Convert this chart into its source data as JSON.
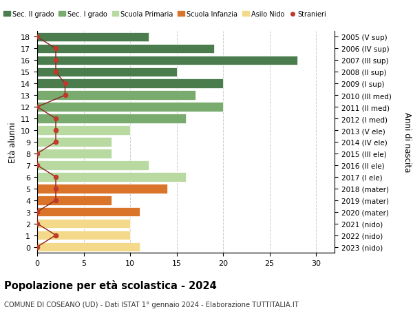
{
  "ages": [
    18,
    17,
    16,
    15,
    14,
    13,
    12,
    11,
    10,
    9,
    8,
    7,
    6,
    5,
    4,
    3,
    2,
    1,
    0
  ],
  "right_labels": [
    "2005 (V sup)",
    "2006 (IV sup)",
    "2007 (III sup)",
    "2008 (II sup)",
    "2009 (I sup)",
    "2010 (III med)",
    "2011 (II med)",
    "2012 (I med)",
    "2013 (V ele)",
    "2014 (IV ele)",
    "2015 (III ele)",
    "2016 (II ele)",
    "2017 (I ele)",
    "2018 (mater)",
    "2019 (mater)",
    "2020 (mater)",
    "2021 (nido)",
    "2022 (nido)",
    "2023 (nido)"
  ],
  "bar_values": [
    12,
    19,
    28,
    15,
    20,
    17,
    20,
    16,
    10,
    8,
    8,
    12,
    16,
    14,
    8,
    11,
    10,
    10,
    11
  ],
  "bar_colors": [
    "#4a7c4e",
    "#4a7c4e",
    "#4a7c4e",
    "#4a7c4e",
    "#4a7c4e",
    "#7aab6e",
    "#7aab6e",
    "#7aab6e",
    "#b8d9a0",
    "#b8d9a0",
    "#b8d9a0",
    "#b8d9a0",
    "#b8d9a0",
    "#d9742a",
    "#d9742a",
    "#d9742a",
    "#f5d98a",
    "#f5d98a",
    "#f5d98a"
  ],
  "stranieri_values": [
    0,
    2,
    2,
    2,
    3,
    3,
    0,
    2,
    2,
    2,
    0,
    0,
    2,
    2,
    2,
    0,
    0,
    2,
    0
  ],
  "legend_labels": [
    "Sec. II grado",
    "Sec. I grado",
    "Scuola Primaria",
    "Scuola Infanzia",
    "Asilo Nido",
    "Stranieri"
  ],
  "legend_colors": [
    "#4a7c4e",
    "#7aab6e",
    "#b8d9a0",
    "#d9742a",
    "#f5d98a",
    "#c0392b"
  ],
  "title": "Popolazione per età scolastica - 2024",
  "subtitle": "COMUNE DI COSEANO (UD) - Dati ISTAT 1° gennaio 2024 - Elaborazione TUTTITALIA.IT",
  "ylabel": "Età alunni",
  "ylabel_right": "Anni di nascita",
  "xlim": [
    0,
    32
  ],
  "background_color": "#ffffff",
  "grid_color": "#cccccc",
  "stranieri_color": "#c0392b",
  "stranieri_line_color": "#8b2020"
}
